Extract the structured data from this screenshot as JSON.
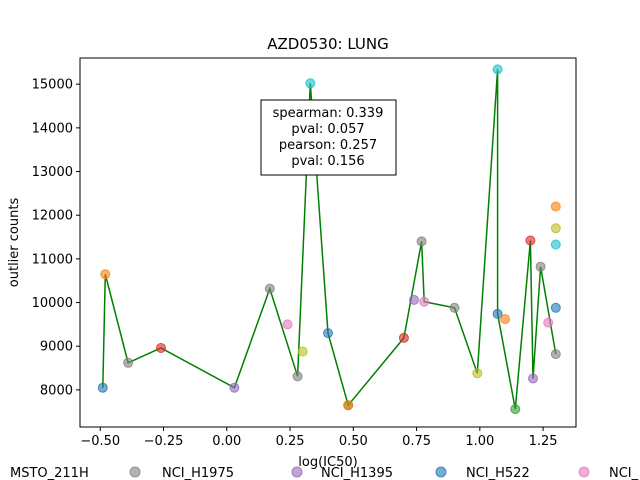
{
  "chart_data": {
    "type": "scatter",
    "title": "AZD0530: LUNG",
    "xlabel": "log(IC50)",
    "ylabel": "outlier counts",
    "xlim": [
      -0.58,
      1.38
    ],
    "ylim": [
      7150,
      15600
    ],
    "x_ticks": [
      -0.5,
      -0.25,
      0.0,
      0.25,
      0.5,
      0.75,
      1.0,
      1.25
    ],
    "x_tick_labels": [
      "−0.50",
      "−0.25",
      "0.00",
      "0.25",
      "0.50",
      "0.75",
      "1.00",
      "1.25"
    ],
    "y_ticks": [
      8000,
      9000,
      10000,
      11000,
      12000,
      13000,
      14000,
      15000
    ],
    "y_tick_labels": [
      "8000",
      "9000",
      "10000",
      "11000",
      "12000",
      "13000",
      "14000",
      "15000"
    ],
    "grid": false,
    "line_color": "#008000",
    "stats": {
      "lines": [
        "spearman: 0.339",
        "pval: 0.057",
        "pearson: 0.257",
        "pval: 0.156"
      ]
    },
    "points": [
      {
        "x": -0.49,
        "y": 8050,
        "color": "#1f77b4"
      },
      {
        "x": -0.48,
        "y": 10650,
        "color": "#ff7f0e"
      },
      {
        "x": -0.39,
        "y": 8620,
        "color": "#7f7f7f"
      },
      {
        "x": -0.26,
        "y": 8960,
        "color": "#d62728"
      },
      {
        "x": 0.03,
        "y": 8050,
        "color": "#9467bd"
      },
      {
        "x": 0.17,
        "y": 10320,
        "color": "#7f7f7f"
      },
      {
        "x": 0.24,
        "y": 9500,
        "color": "#e377c2"
      },
      {
        "x": 0.28,
        "y": 8310,
        "color": "#7f7f7f"
      },
      {
        "x": 0.3,
        "y": 8880,
        "color": "#bcbd22"
      },
      {
        "x": 0.33,
        "y": 15020,
        "color": "#17becf"
      },
      {
        "x": 0.4,
        "y": 9300,
        "color": "#1f77b4"
      },
      {
        "x": 0.48,
        "y": 7650,
        "color": "#2ca02c"
      },
      {
        "x": 0.48,
        "y": 7650,
        "color": "#ff7f0e"
      },
      {
        "x": 0.7,
        "y": 9190,
        "color": "#d62728"
      },
      {
        "x": 0.74,
        "y": 10060,
        "color": "#9467bd"
      },
      {
        "x": 0.77,
        "y": 11400,
        "color": "#7f7f7f"
      },
      {
        "x": 0.78,
        "y": 10020,
        "color": "#e377c2"
      },
      {
        "x": 0.9,
        "y": 9880,
        "color": "#7f7f7f"
      },
      {
        "x": 0.99,
        "y": 8380,
        "color": "#bcbd22"
      },
      {
        "x": 1.07,
        "y": 15340,
        "color": "#17becf"
      },
      {
        "x": 1.07,
        "y": 9740,
        "color": "#1f77b4"
      },
      {
        "x": 1.1,
        "y": 9620,
        "color": "#ff7f0e"
      },
      {
        "x": 1.14,
        "y": 7560,
        "color": "#2ca02c"
      },
      {
        "x": 1.2,
        "y": 11420,
        "color": "#d62728"
      },
      {
        "x": 1.21,
        "y": 8260,
        "color": "#9467bd"
      },
      {
        "x": 1.24,
        "y": 10820,
        "color": "#7f7f7f"
      },
      {
        "x": 1.27,
        "y": 9540,
        "color": "#e377c2"
      },
      {
        "x": 1.3,
        "y": 8820,
        "color": "#7f7f7f"
      },
      {
        "x": 1.3,
        "y": 11700,
        "color": "#bcbd22"
      },
      {
        "x": 1.3,
        "y": 12200,
        "color": "#ff7f0e"
      },
      {
        "x": 1.3,
        "y": 11330,
        "color": "#17becf"
      },
      {
        "x": 1.3,
        "y": 9880,
        "color": "#1f77b4"
      }
    ],
    "line_path_x": [
      -0.49,
      -0.48,
      -0.39,
      -0.26,
      0.03,
      0.17,
      0.28,
      0.33,
      0.4,
      0.48,
      0.7,
      0.77,
      0.78,
      0.9,
      0.99,
      1.07,
      1.07,
      1.14,
      1.2,
      1.21,
      1.24,
      1.3
    ],
    "line_path_y": [
      8050,
      10650,
      8620,
      8960,
      8050,
      10320,
      8310,
      15020,
      9300,
      7650,
      9190,
      11400,
      10020,
      9880,
      8380,
      15340,
      9740,
      7560,
      11420,
      8260,
      10820,
      8820
    ],
    "legend": {
      "placement": "bottom",
      "entries": [
        {
          "label": "MSTO_211H",
          "color": "#7f7f7f"
        },
        {
          "label": "NCI_H1975",
          "color": "#9467bd"
        },
        {
          "label": "NCI_H1395",
          "color": "#1f77b4"
        },
        {
          "label": "NCI_H522",
          "color": "#e377c2"
        },
        {
          "label": "NCI_",
          "color": null
        }
      ]
    }
  }
}
